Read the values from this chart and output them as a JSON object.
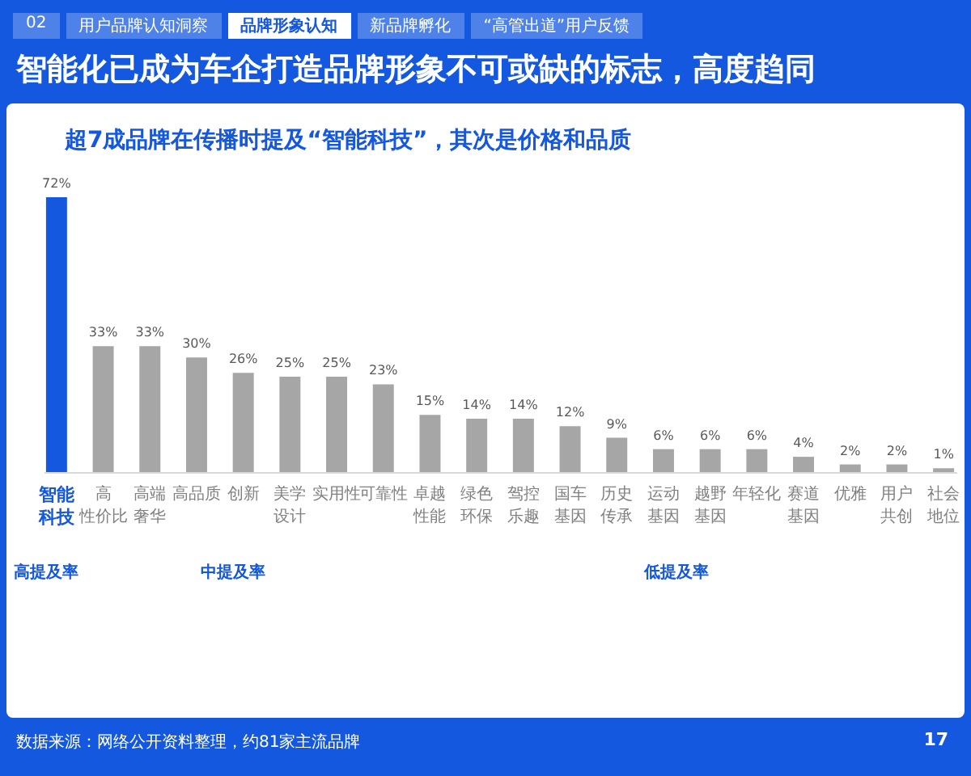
{
  "chart_data": {
    "type": "bar",
    "title": "智能化已成为车企打造品牌形象不可或缺的标志，高度趋同",
    "subtitle": "超7成品牌在传播时提及“智能科技”，其次是价格和品质",
    "categories": [
      "智能科技",
      "高性价比",
      "高端奢华",
      "高品质",
      "创新",
      "美学设计",
      "实用性",
      "可靠性",
      "卓越性能",
      "绿色环保",
      "驾控乐趣",
      "国车基因",
      "历史传承",
      "运动基因",
      "越野基因",
      "年轻化",
      "赛道基因",
      "优雅",
      "用户共创",
      "社会地位"
    ],
    "values": [
      72,
      33,
      33,
      30,
      26,
      25,
      25,
      23,
      15,
      14,
      14,
      12,
      9,
      6,
      6,
      6,
      4,
      2,
      2,
      1
    ],
    "value_labels": [
      "72%",
      "33%",
      "33%",
      "30%",
      "26%",
      "25%",
      "25%",
      "23%",
      "15%",
      "14%",
      "14%",
      "12%",
      "9%",
      "6%",
      "6%",
      "6%",
      "4%",
      "2%",
      "2%",
      "1%"
    ],
    "colors": [
      "#1558e0",
      "#a6a6a6",
      "#a6a6a6",
      "#a6a6a6",
      "#a6a6a6",
      "#a6a6a6",
      "#a6a6a6",
      "#a6a6a6",
      "#a6a6a6",
      "#a6a6a6",
      "#a6a6a6",
      "#a6a6a6",
      "#a6a6a6",
      "#a6a6a6",
      "#a6a6a6",
      "#a6a6a6",
      "#a6a6a6",
      "#a6a6a6",
      "#a6a6a6",
      "#a6a6a6"
    ],
    "annotations": [
      "高提及率",
      "中提及率",
      "低提及率",
      "数据来源：网络公开资料整理，约81家主流品牌",
      "17",
      "02",
      "用户品牌认知洞察",
      "品牌形象认知",
      "新品牌孵化",
      "“高管出道”用户反馈"
    ],
    "grid": false
  }
}
